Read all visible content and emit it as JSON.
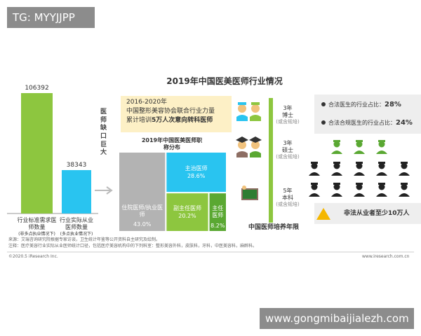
{
  "watermark_top": "TG: MYYJJPP",
  "watermark_bottom": "www.gongmibaijialezh.com",
  "title": "2019年中国医美医师行业情况",
  "chart_data": [
    {
      "type": "bar",
      "categories": [
        "行业标准需求医师数量",
        "行业实际从业医师数量"
      ],
      "category_notes": [
        "(非多点执业情况下)",
        "(多点执业情况下)"
      ],
      "values": [
        106392,
        38343
      ],
      "colors": [
        "#8dc63f",
        "#29c4f0"
      ],
      "annotation": "医师缺口巨大"
    },
    {
      "type": "treemap",
      "title": "2019年中国医美医师职称分布",
      "categories": [
        "住院医师/执业医师",
        "主治医师",
        "副主任医师",
        "主任医师"
      ],
      "values": [
        43.0,
        28.6,
        20.2,
        8.2
      ],
      "value_labels": [
        "43.0%",
        "28.6%",
        "20.2%",
        "8.2%"
      ],
      "colors": [
        "#b3b3b3",
        "#29c4f0",
        "#8dc63f",
        "#5aa832"
      ]
    }
  ],
  "training": {
    "period": "2016-2020年",
    "line1": "中国整形美容协会联合行业力量",
    "line2_prefix": "累计培训",
    "line2_bold": "5万人次意向转科医师"
  },
  "education": {
    "stages": [
      {
        "years": "3年",
        "degree": "博士",
        "note": "(或含规培)"
      },
      {
        "years": "3年",
        "degree": "硕士",
        "note": "(或含规培)"
      },
      {
        "years": "5年",
        "degree": "本科",
        "note": "(或含规培)"
      }
    ],
    "caption": "中国医师培养年限"
  },
  "shares": [
    {
      "label": "合法医生的行业占比：",
      "value": "28%"
    },
    {
      "label": "合法合规医生的行业占比：",
      "value": "24%"
    }
  ],
  "warning": "非法从业者至少10万人",
  "notes": [
    "来源：艾瑞咨询研究院根据专家访谈，卫生统计年鉴等公开资料自主研究及绘制。",
    "注释：医疗美容行业实际从业医师统计口径，包括医疗美容机构中的下列科室：整形美容外科，皮肤科，牙科，中医美容科，麻醉科。"
  ],
  "footer": {
    "copyright": "©2020.5 iResearch Inc.",
    "site": "www.iresearch.com.cn"
  }
}
